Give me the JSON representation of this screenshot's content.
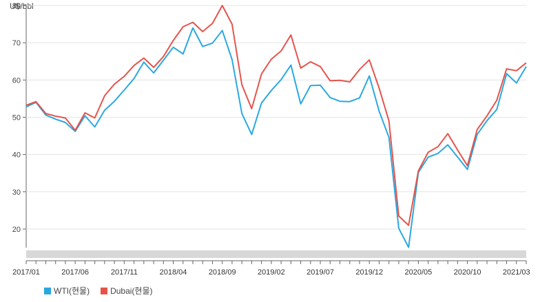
{
  "chart_data": {
    "type": "line",
    "unit_label": "U$/bbl",
    "ylim": [
      15,
      80
    ],
    "y_ticks": [
      20,
      30,
      40,
      50,
      60,
      70,
      80
    ],
    "x_tick_labels": [
      "2017/01",
      "2017/06",
      "2017/11",
      "2018/04",
      "2018/09",
      "2019/02",
      "2019/07",
      "2019/12",
      "2020/05",
      "2020/10",
      "2021/03"
    ],
    "x": [
      "2017/01",
      "2017/02",
      "2017/03",
      "2017/04",
      "2017/05",
      "2017/06",
      "2017/07",
      "2017/08",
      "2017/09",
      "2017/10",
      "2017/11",
      "2017/12",
      "2018/01",
      "2018/02",
      "2018/03",
      "2018/04",
      "2018/05",
      "2018/06",
      "2018/07",
      "2018/08",
      "2018/09",
      "2018/10",
      "2018/11",
      "2018/12",
      "2019/01",
      "2019/02",
      "2019/03",
      "2019/04",
      "2019/05",
      "2019/06",
      "2019/07",
      "2019/08",
      "2019/09",
      "2019/10",
      "2019/11",
      "2019/12",
      "2020/01",
      "2020/02",
      "2020/03",
      "2020/04",
      "2020/05",
      "2020/06",
      "2020/07",
      "2020/08",
      "2020/09",
      "2020/10",
      "2020/11",
      "2020/12",
      "2021/01",
      "2021/02",
      "2021/03",
      "2021/04"
    ],
    "series": [
      {
        "name": "WTI(현물)",
        "color": "#29a8e0",
        "values": [
          52.8,
          54.0,
          50.6,
          49.5,
          48.6,
          46.2,
          50.4,
          47.4,
          51.9,
          54.3,
          57.3,
          60.4,
          64.8,
          61.9,
          65.3,
          68.8,
          67.0,
          74.0,
          69.0,
          69.9,
          73.3,
          65.5,
          51.0,
          45.4,
          53.8,
          57.2,
          60.1,
          64.0,
          53.6,
          58.5,
          58.6,
          55.3,
          54.3,
          54.2,
          55.2,
          61.1,
          51.6,
          44.6,
          20.2,
          15.1,
          35.2,
          39.3,
          40.3,
          42.6,
          39.3,
          36.0,
          45.4,
          49.1,
          52.1,
          61.7,
          59.2,
          63.6
        ]
      },
      {
        "name": "Dubai(현물)",
        "color": "#e5534b",
        "values": [
          53.2,
          54.2,
          51.0,
          50.3,
          49.8,
          46.5,
          51.2,
          49.8,
          55.8,
          58.9,
          61.0,
          63.9,
          65.9,
          63.4,
          66.3,
          70.6,
          74.3,
          75.5,
          73.0,
          75.2,
          80.0,
          75.0,
          58.7,
          52.3,
          61.6,
          65.6,
          67.8,
          72.1,
          63.2,
          64.9,
          63.6,
          59.8,
          59.9,
          59.5,
          62.8,
          65.4,
          57.8,
          49.0,
          23.5,
          21.0,
          35.6,
          40.6,
          42.1,
          45.6,
          41.2,
          37.0,
          46.7,
          50.4,
          54.6,
          63.0,
          62.5,
          64.6
        ]
      }
    ]
  }
}
